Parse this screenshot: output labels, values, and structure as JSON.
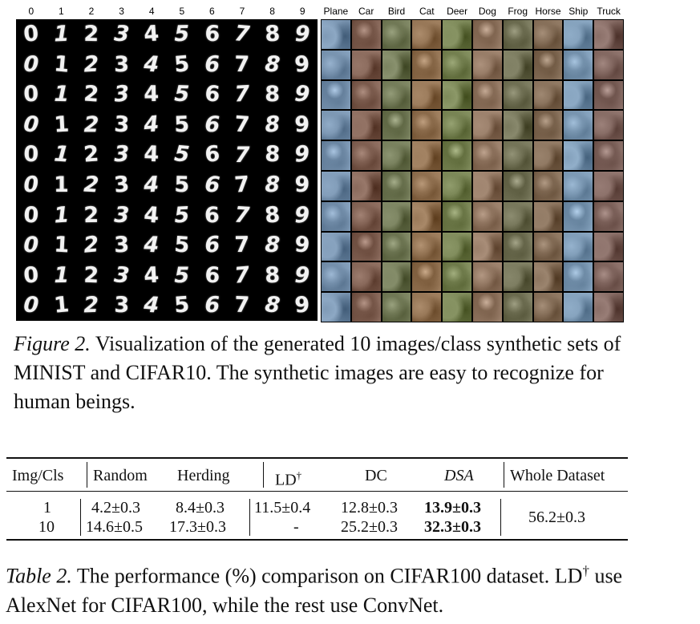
{
  "figure": {
    "mnist_column_labels": [
      "0",
      "1",
      "2",
      "3",
      "4",
      "5",
      "6",
      "7",
      "8",
      "9"
    ],
    "cifar_column_labels": [
      "Plane",
      "Car",
      "Bird",
      "Cat",
      "Deer",
      "Dog",
      "Frog",
      "Horse",
      "Ship",
      "Truck"
    ],
    "mnist_rows": 10,
    "cifar_rows": 10,
    "cifar_class_tints": [
      "#6f8aa6",
      "#7a5a4c",
      "#6b7350",
      "#8a6a4a",
      "#6e7a4a",
      "#8a6f5a",
      "#6a6a4e",
      "#7d6650",
      "#7390ab",
      "#7a5f58"
    ],
    "caption_lead": "Figure 2.",
    "caption_text": "Visualization of the generated 10 images/class synthetic sets of MINIST and CIFAR10. The synthetic images are easy to recognize for human beings."
  },
  "table": {
    "headers": {
      "img_cls": "Img/Cls",
      "random": "Random",
      "herding": "Herding",
      "ld": "LD",
      "ld_mark": "†",
      "dc": "DC",
      "dsa": "DSA",
      "whole": "Whole Dataset"
    },
    "rows": [
      {
        "img_cls": "1",
        "random": "4.2±0.3",
        "herding": "8.4±0.3",
        "ld": "11.5±0.4",
        "dc": "12.8±0.3",
        "dsa": "13.9±0.3"
      },
      {
        "img_cls": "10",
        "random": "14.6±0.5",
        "herding": "17.3±0.3",
        "ld": "-",
        "dc": "25.2±0.3",
        "dsa": "32.3±0.3"
      }
    ],
    "whole_dataset": "56.2±0.3",
    "caption_lead": "Table 2.",
    "caption_text_1": "The performance (%) comparison on CIFAR100 dataset. LD",
    "caption_mark": "†",
    "caption_text_2": "use AlexNet for CIFAR100, while the rest use ConvNet."
  }
}
